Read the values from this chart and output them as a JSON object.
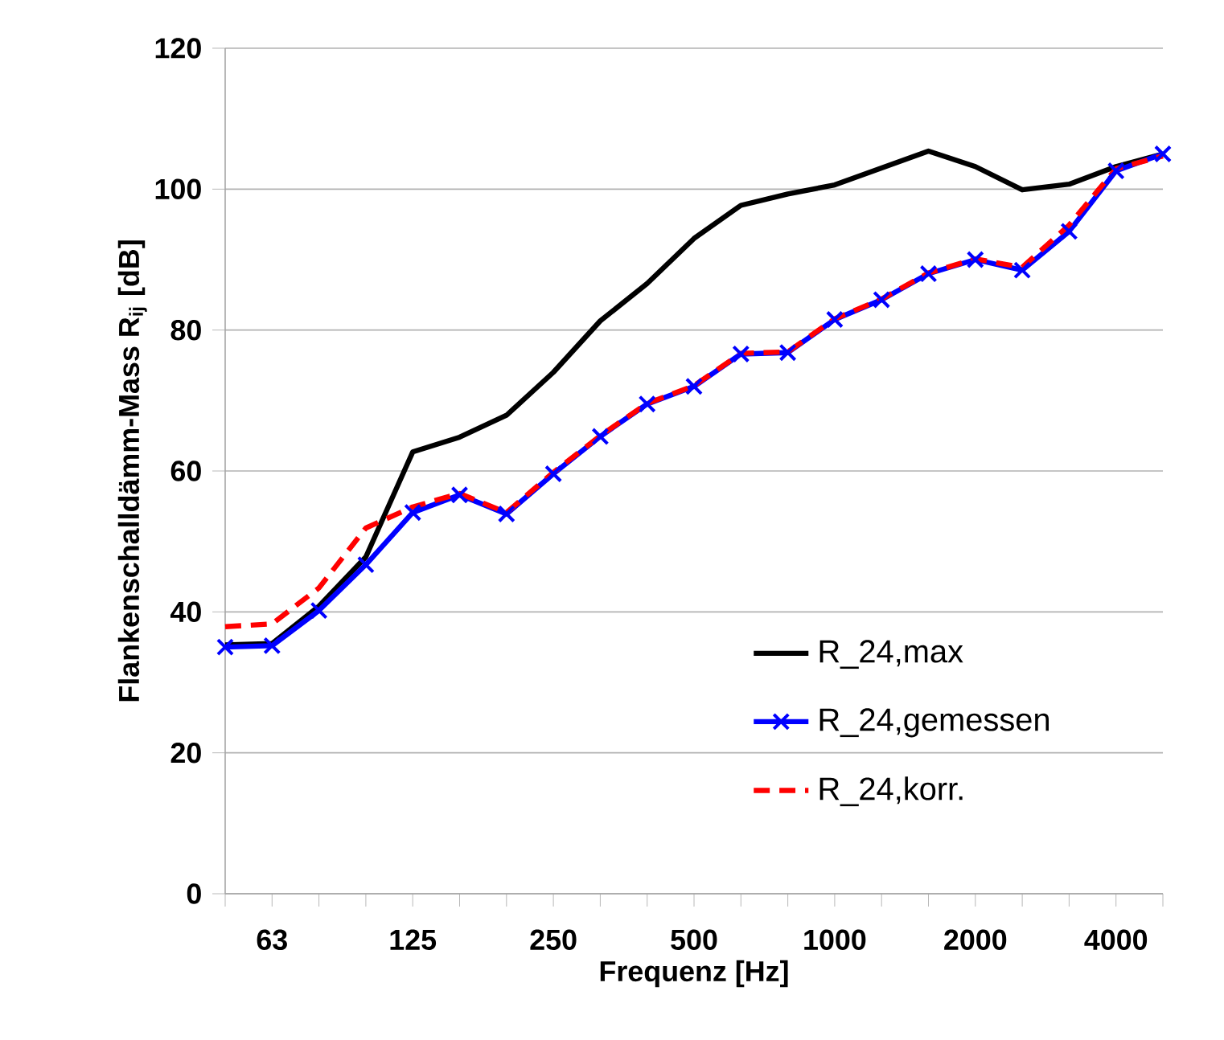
{
  "chart_data": {
    "type": "line",
    "xlabel": "Frequenz [Hz]",
    "ylabel": "Flankenschalldämm-Mass R$_{ij}$ [dB]",
    "categories": [
      null,
      "63",
      null,
      null,
      "125",
      null,
      null,
      "250",
      null,
      null,
      "500",
      null,
      null,
      "1000",
      null,
      null,
      "2000",
      null,
      null,
      "4000",
      null
    ],
    "series": [
      {
        "name": "R_24,max",
        "color": "#000000",
        "line_style": "solid",
        "marker": "none",
        "values": [
          35.3,
          35.5,
          40.8,
          47.8,
          62.7,
          64.8,
          67.9,
          74.0,
          81.3,
          86.6,
          93.0,
          97.7,
          99.3,
          100.6,
          103.0,
          105.4,
          103.2,
          99.9,
          100.7,
          103.2,
          105.0
        ]
      },
      {
        "name": "R_24,gemessen",
        "color": "#0000ff",
        "line_style": "solid",
        "marker": "cross",
        "values": [
          35.0,
          35.2,
          40.2,
          46.7,
          54.1,
          56.6,
          53.9,
          59.6,
          64.9,
          69.5,
          72.0,
          76.6,
          76.8,
          81.5,
          84.3,
          88.0,
          90.0,
          88.5,
          94.0,
          102.6,
          105.0
        ]
      },
      {
        "name": "R_24,korr.",
        "color": "#ff0000",
        "line_style": "dashed",
        "marker": "none",
        "values": [
          37.9,
          38.3,
          43.4,
          51.9,
          54.9,
          56.8,
          54.1,
          59.8,
          65.0,
          69.6,
          72.1,
          76.7,
          76.9,
          81.6,
          84.4,
          88.1,
          90.1,
          88.9,
          94.9,
          102.9,
          104.7
        ]
      }
    ],
    "ylim": [
      0,
      120
    ],
    "yticks": [
      0,
      20,
      40,
      60,
      80,
      100,
      120
    ],
    "grid": "y",
    "legend": "bottom right"
  }
}
